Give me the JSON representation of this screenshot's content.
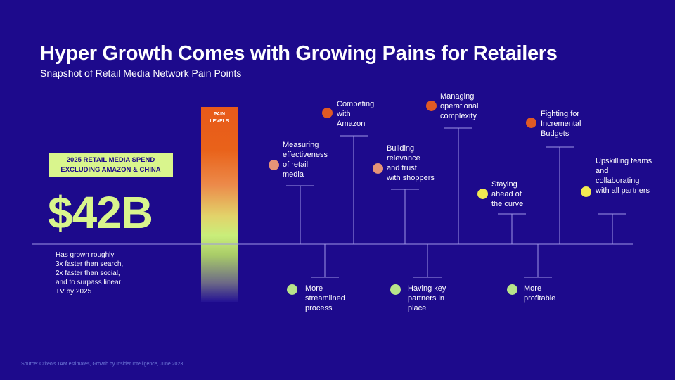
{
  "header": {
    "title": "Hyper Growth Comes with Growing Pains for Retailers",
    "subtitle": "Snapshot of Retail Media Network Pain Points"
  },
  "spend": {
    "label_line1": "2025 RETAIL MEDIA SPEND",
    "label_line2": "EXCLUDING AMAZON & CHINA",
    "value": "$42B",
    "note_lines": [
      "Has grown roughly",
      "3x faster than search,",
      "2x faster than social,",
      "and to surpass linear",
      "TV by 2025"
    ]
  },
  "pain_bar": {
    "label_line1": "PAIN",
    "label_line2": "LEVELS"
  },
  "pain_points": [
    {
      "lines": [
        "Measuring",
        "effectiveness",
        "of retail",
        "media"
      ],
      "dot_color": "#e69377"
    },
    {
      "lines": [
        "Competing",
        "with",
        "Amazon"
      ],
      "dot_color": "#e05a24"
    },
    {
      "lines": [
        "Building",
        "relevance",
        "and trust",
        "with shoppers"
      ],
      "dot_color": "#e69377"
    },
    {
      "lines": [
        "Managing",
        "operational",
        "complexity"
      ],
      "dot_color": "#e05a24"
    },
    {
      "lines": [
        "Staying",
        "ahead of",
        "the curve"
      ],
      "dot_color": "#f2ea52"
    },
    {
      "lines": [
        "Fighting for",
        "Incremental",
        "Budgets"
      ],
      "dot_color": "#e05a24"
    },
    {
      "lines": [
        "Upskilling teams",
        "and",
        "collaborating",
        "with all partners"
      ],
      "dot_color": "#f2ea52"
    }
  ],
  "gain_points": [
    {
      "lines": [
        "More",
        "streamlined",
        "process"
      ],
      "dot_color": "#b7e48a"
    },
    {
      "lines": [
        "Having key",
        "partners in",
        "place"
      ],
      "dot_color": "#b7e48a"
    },
    {
      "lines": [
        "More",
        "profitable"
      ],
      "dot_color": "#b7e48a"
    }
  ],
  "footnote": "Source: Criteo's TAM estimates, Growth by Insider Intelligence, June 2023."
}
